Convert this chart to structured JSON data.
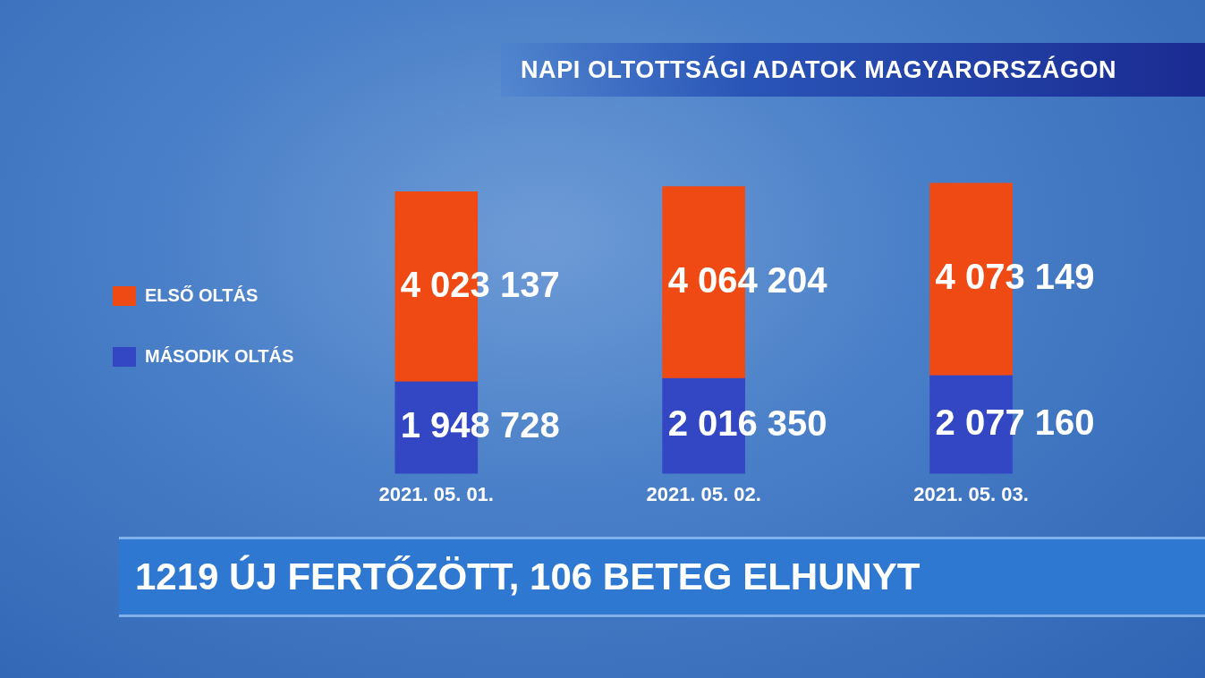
{
  "chart_data": {
    "type": "bar",
    "title": "NAPI OLTOTTSÁGI ADATOK MAGYARORSZÁGON",
    "categories": [
      "2021. 05. 01.",
      "2021. 05. 02.",
      "2021. 05. 03."
    ],
    "series": [
      {
        "name": "MÁSODIK OLTÁS",
        "color": "#3347c4",
        "values": [
          1948728,
          2016350,
          2077160
        ],
        "value_labels": [
          "1 948 728",
          "2 016 350",
          "2 077 160"
        ]
      },
      {
        "name": "ELSŐ OLTÁS",
        "color": "#f04a14",
        "values": [
          4023137,
          4064204,
          4073149
        ],
        "value_labels": [
          "4 023 137",
          "4 064 204",
          "4 073 149"
        ]
      }
    ],
    "stacked": true,
    "legend": "left",
    "tick_labels": "x",
    "annotations": [
      "1219 ÚJ FERTŐZÖTT, 106 BETEG ELHUNYT"
    ]
  }
}
